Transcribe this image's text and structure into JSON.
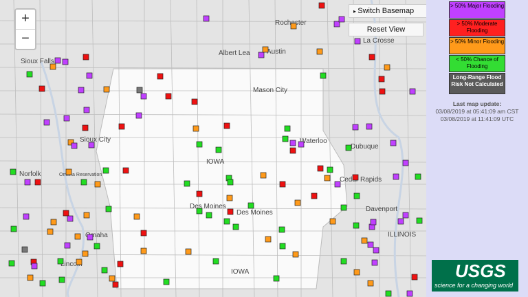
{
  "zoom_controls": {
    "zoom_in": "+",
    "zoom_out": "−"
  },
  "buttons": {
    "switch_basemap": "Switch Basemap",
    "reset_view": "Reset View"
  },
  "legend": [
    "> 50% Major Flooding",
    "> 50% Moderate Flooding",
    "> 50% Minor Flooding",
    "< 50% Chance of Flooding",
    "Long-Range Flood Risk Not Calculated"
  ],
  "update": {
    "heading": "Last map update:",
    "local": "03/08/2019 at 05:41:09 am CST",
    "utc": "03/08/2019 at 11:41:09 UTC"
  },
  "logo": {
    "name": "USGS",
    "tagline": "science for a changing world"
  },
  "map_labels": [
    "Rochester",
    "Albert Lea",
    "Austin",
    "La Crosse",
    "Sioux Falls",
    "Mason City",
    "Sioux City",
    "Waterloo",
    "Dubuque",
    "IOWA",
    "Norfolk",
    "Omaha Reservation",
    "Cedar Rapids",
    "Des Moines",
    "Des Moines",
    "Davenport",
    "ILLINOIS",
    "Omaha",
    "Lincoln",
    "IOWA"
  ]
}
